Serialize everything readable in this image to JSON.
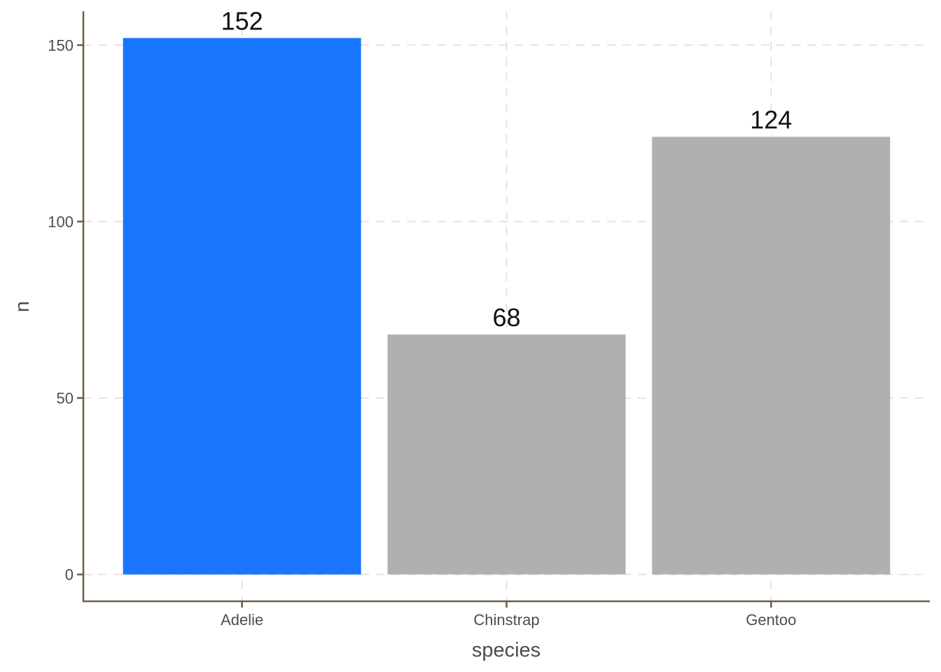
{
  "chart_data": {
    "type": "bar",
    "categories": [
      "Adelie",
      "Chinstrap",
      "Gentoo"
    ],
    "values": [
      152,
      68,
      124
    ],
    "data_labels": [
      "152",
      "68",
      "124"
    ],
    "title": "",
    "xlabel": "species",
    "ylabel": "n",
    "ylim": [
      -7.6,
      159.6
    ],
    "yticks": [
      0,
      50,
      100,
      150
    ],
    "ytick_labels": [
      "0",
      "50",
      "100",
      "150"
    ],
    "grid": true,
    "legend": "none",
    "colors": {
      "highlight": "#1a76ff",
      "default": "#b0b0b0",
      "highlight_category": "Adelie"
    }
  }
}
